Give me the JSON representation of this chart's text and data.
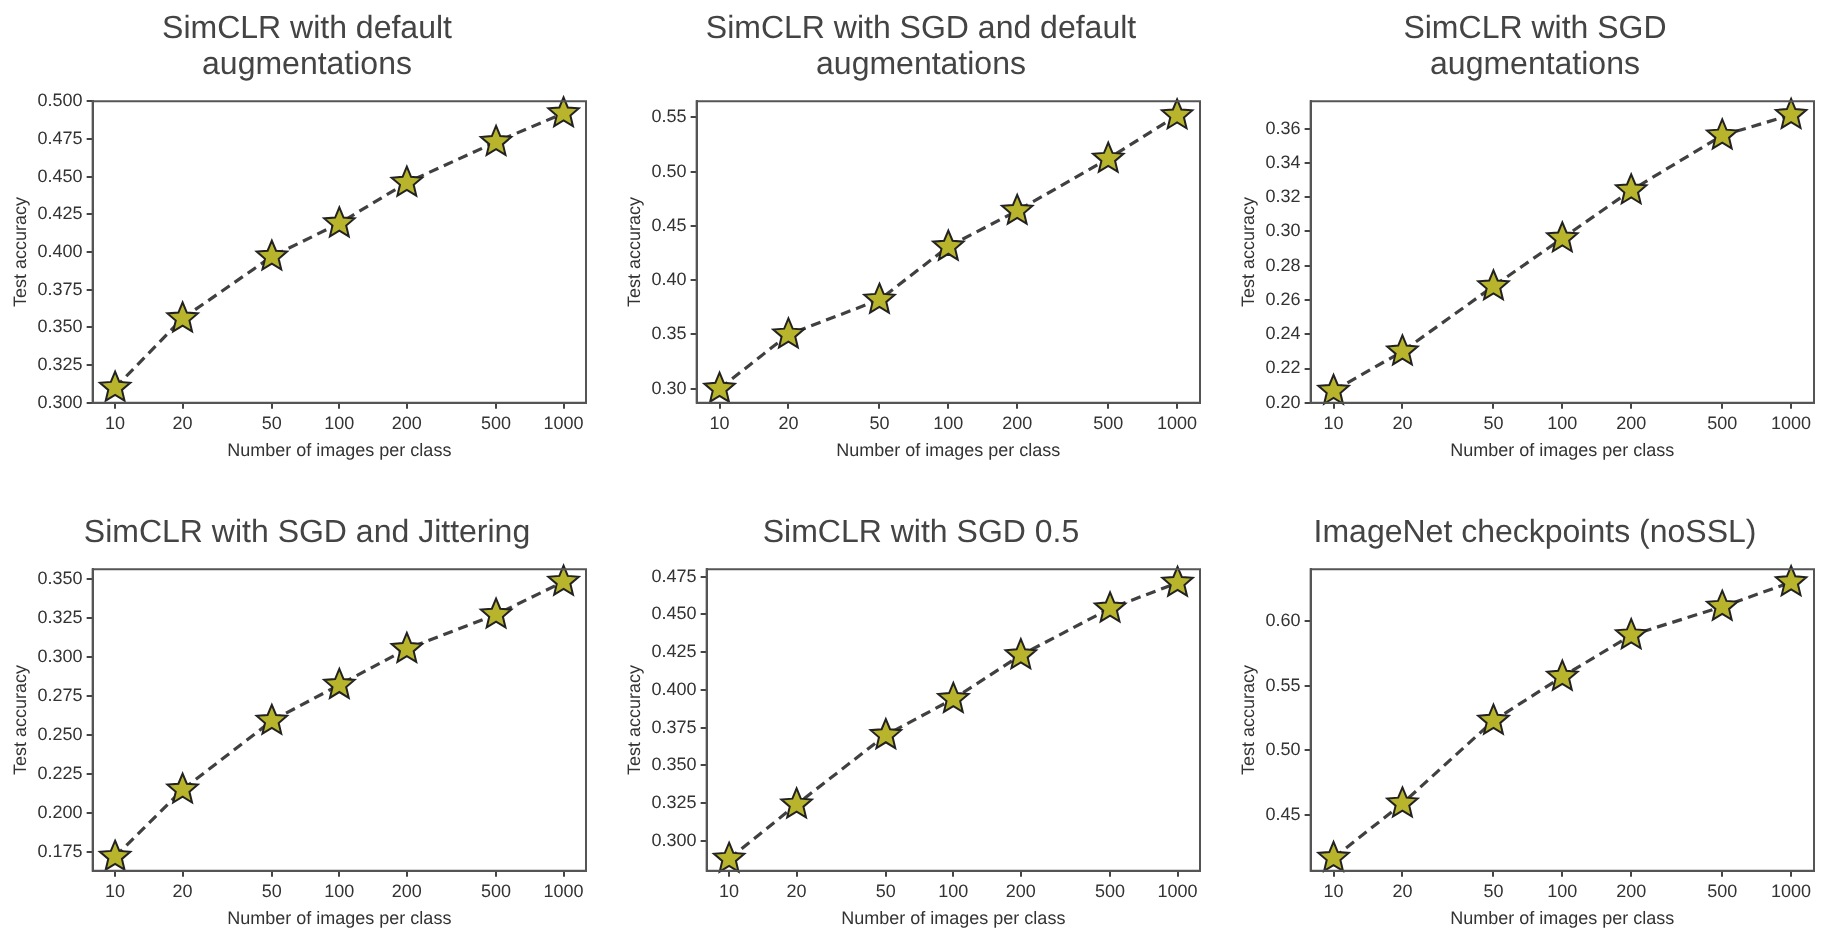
{
  "chart_data": [
    {
      "type": "line",
      "title": "SimCLR with default augmentations",
      "xlabel": "Number of images per class",
      "ylabel": "Test accuracy",
      "log": "x",
      "marker": "star",
      "line_style": "dashed",
      "grid": false,
      "legend": false,
      "xlim": [
        7.94,
        1259
      ],
      "xticks": [
        10,
        20,
        50,
        100,
        200,
        500,
        1000
      ],
      "ylim": [
        0.3,
        0.5
      ],
      "yticks": [
        {
          "value": 0.3,
          "label": "0.300"
        },
        {
          "value": 0.325,
          "label": "0.325"
        },
        {
          "value": 0.35,
          "label": "0.350"
        },
        {
          "value": 0.375,
          "label": "0.375"
        },
        {
          "value": 0.4,
          "label": "0.400"
        },
        {
          "value": 0.425,
          "label": "0.425"
        },
        {
          "value": 0.45,
          "label": "0.450"
        },
        {
          "value": 0.475,
          "label": "0.475"
        },
        {
          "value": 0.5,
          "label": "0.500"
        }
      ],
      "x": [
        10,
        20,
        50,
        100,
        200,
        500,
        1000
      ],
      "series": [
        {
          "color": "#b8b42c",
          "values": [
            0.31,
            0.356,
            0.397,
            0.419,
            0.446,
            0.473,
            0.492
          ]
        }
      ]
    },
    {
      "type": "line",
      "title": "SimCLR with SGD and default augmentations",
      "xlabel": "Number of images per class",
      "ylabel": "Test accuracy",
      "log": "x",
      "marker": "star",
      "line_style": "dashed",
      "grid": false,
      "legend": false,
      "xlim": [
        7.94,
        1259
      ],
      "xticks": [
        10,
        20,
        50,
        100,
        200,
        500,
        1000
      ],
      "ylim": [
        0.287,
        0.565
      ],
      "yticks": [
        {
          "value": 0.3,
          "label": "0.30"
        },
        {
          "value": 0.35,
          "label": "0.35"
        },
        {
          "value": 0.4,
          "label": "0.40"
        },
        {
          "value": 0.45,
          "label": "0.45"
        },
        {
          "value": 0.5,
          "label": "0.50"
        },
        {
          "value": 0.55,
          "label": "0.55"
        }
      ],
      "x": [
        10,
        20,
        50,
        100,
        200,
        500,
        1000
      ],
      "series": [
        {
          "color": "#b8b42c",
          "values": [
            0.3,
            0.35,
            0.382,
            0.431,
            0.464,
            0.512,
            0.552
          ]
        }
      ]
    },
    {
      "type": "line",
      "title": "SimCLR with SGD augmentations",
      "xlabel": "Number of images per class",
      "ylabel": "Test accuracy",
      "log": "x",
      "marker": "star",
      "line_style": "dashed",
      "grid": false,
      "legend": false,
      "xlim": [
        7.94,
        1259
      ],
      "xticks": [
        10,
        20,
        50,
        100,
        200,
        500,
        1000
      ],
      "ylim": [
        0.2,
        0.376
      ],
      "yticks": [
        {
          "value": 0.2,
          "label": "0.20"
        },
        {
          "value": 0.22,
          "label": "0.22"
        },
        {
          "value": 0.24,
          "label": "0.24"
        },
        {
          "value": 0.26,
          "label": "0.26"
        },
        {
          "value": 0.28,
          "label": "0.28"
        },
        {
          "value": 0.3,
          "label": "0.30"
        },
        {
          "value": 0.32,
          "label": "0.32"
        },
        {
          "value": 0.34,
          "label": "0.34"
        },
        {
          "value": 0.36,
          "label": "0.36"
        }
      ],
      "x": [
        10,
        20,
        50,
        100,
        200,
        500,
        1000
      ],
      "series": [
        {
          "color": "#b8b42c",
          "values": [
            0.207,
            0.23,
            0.268,
            0.296,
            0.324,
            0.356,
            0.368
          ]
        }
      ]
    },
    {
      "type": "line",
      "title": "SimCLR with SGD and Jittering",
      "xlabel": "Number of images per class",
      "ylabel": "Test accuracy",
      "log": "x",
      "marker": "star",
      "line_style": "dashed",
      "grid": false,
      "legend": false,
      "xlim": [
        7.94,
        1259
      ],
      "xticks": [
        10,
        20,
        50,
        100,
        200,
        500,
        1000
      ],
      "ylim": [
        0.163,
        0.356
      ],
      "yticks": [
        {
          "value": 0.175,
          "label": "0.175"
        },
        {
          "value": 0.2,
          "label": "0.200"
        },
        {
          "value": 0.225,
          "label": "0.225"
        },
        {
          "value": 0.25,
          "label": "0.250"
        },
        {
          "value": 0.275,
          "label": "0.275"
        },
        {
          "value": 0.3,
          "label": "0.300"
        },
        {
          "value": 0.325,
          "label": "0.325"
        },
        {
          "value": 0.35,
          "label": "0.350"
        }
      ],
      "x": [
        10,
        20,
        50,
        100,
        200,
        500,
        1000
      ],
      "series": [
        {
          "color": "#b8b42c",
          "values": [
            0.172,
            0.215,
            0.259,
            0.282,
            0.305,
            0.327,
            0.348
          ]
        }
      ]
    },
    {
      "type": "line",
      "title": "SimCLR with SGD 0.5",
      "xlabel": "Number of images per class",
      "ylabel": "Test accuracy",
      "log": "x",
      "marker": "star",
      "line_style": "dashed",
      "grid": false,
      "legend": false,
      "xlim": [
        7.94,
        1259
      ],
      "xticks": [
        10,
        20,
        50,
        100,
        200,
        500,
        1000
      ],
      "ylim": [
        0.28,
        0.48
      ],
      "yticks": [
        {
          "value": 0.3,
          "label": "0.300"
        },
        {
          "value": 0.325,
          "label": "0.325"
        },
        {
          "value": 0.35,
          "label": "0.350"
        },
        {
          "value": 0.375,
          "label": "0.375"
        },
        {
          "value": 0.4,
          "label": "0.400"
        },
        {
          "value": 0.425,
          "label": "0.425"
        },
        {
          "value": 0.45,
          "label": "0.450"
        },
        {
          "value": 0.475,
          "label": "0.475"
        }
      ],
      "x": [
        10,
        20,
        50,
        100,
        200,
        500,
        1000
      ],
      "series": [
        {
          "color": "#b8b42c",
          "values": [
            0.288,
            0.324,
            0.37,
            0.394,
            0.423,
            0.454,
            0.471
          ]
        }
      ]
    },
    {
      "type": "line",
      "title": "ImageNet checkpoints (noSSL)",
      "xlabel": "Number of images per class",
      "ylabel": "Test accuracy",
      "log": "x",
      "marker": "star",
      "line_style": "dashed",
      "grid": false,
      "legend": false,
      "xlim": [
        7.94,
        1259
      ],
      "xticks": [
        10,
        20,
        50,
        100,
        200,
        500,
        1000
      ],
      "ylim": [
        0.407,
        0.64
      ],
      "yticks": [
        {
          "value": 0.45,
          "label": "0.45"
        },
        {
          "value": 0.5,
          "label": "0.50"
        },
        {
          "value": 0.55,
          "label": "0.55"
        },
        {
          "value": 0.6,
          "label": "0.60"
        }
      ],
      "x": [
        10,
        20,
        50,
        100,
        200,
        500,
        1000
      ],
      "series": [
        {
          "color": "#b8b42c",
          "values": [
            0.417,
            0.459,
            0.523,
            0.557,
            0.589,
            0.611,
            0.63
          ]
        }
      ]
    }
  ]
}
